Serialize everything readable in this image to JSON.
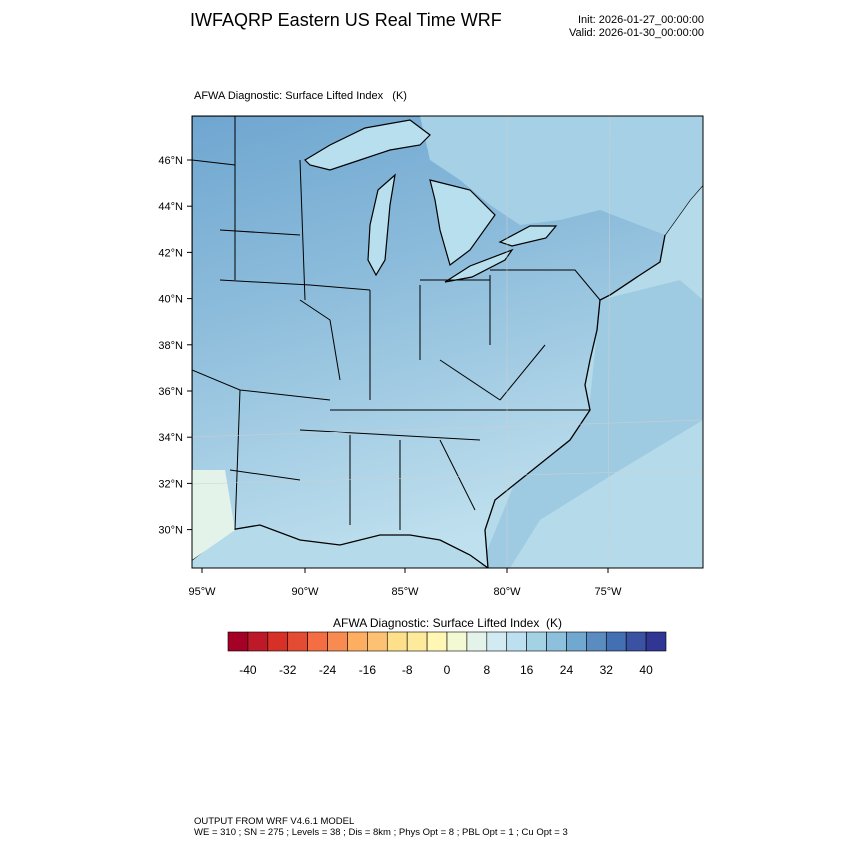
{
  "header": {
    "title": "IWFAQRP Eastern US Real Time WRF",
    "init": "Init: 2026-01-27_00:00:00",
    "valid": "Valid: 2026-01-30_00:00:00"
  },
  "map": {
    "field_label": "AFWA Diagnostic: Surface Lifted Index   (K)",
    "lon_ticks": [
      "95°W",
      "90°W",
      "85°W",
      "80°W",
      "75°W"
    ],
    "lat_ticks": [
      "46°N",
      "44°N",
      "42°N",
      "40°N",
      "38°N",
      "36°N",
      "34°N",
      "32°N",
      "30°N"
    ],
    "colors": {
      "land": "#9cc9e0",
      "ocean": "#b5dbea",
      "north_land": "#6fa6d0",
      "lake": "#b8dfee",
      "outline": "#000000"
    }
  },
  "colorbar": {
    "title": "AFWA Diagnostic: Surface Lifted Index  (K)",
    "labels": [
      "-40",
      "-32",
      "-24",
      "-16",
      "-8",
      "0",
      "8",
      "16",
      "24",
      "32",
      "40"
    ],
    "colors": [
      "#a50026",
      "#be1929",
      "#d73027",
      "#e44b33",
      "#f46d43",
      "#f88b51",
      "#fdae61",
      "#fdc173",
      "#fee08b",
      "#feea9b",
      "#fff7b3",
      "#f3f9d2",
      "#e4f3ea",
      "#d2ebf3",
      "#bce0ef",
      "#a3d2e5",
      "#8cc0dd",
      "#71a8cf",
      "#5a8cc0",
      "#4370b2",
      "#3b52a2",
      "#313695"
    ]
  },
  "footer": {
    "line1": "OUTPUT FROM WRF V4.6.1 MODEL",
    "line2": "WE = 310 ; SN = 275 ; Levels = 38 ; Dis = 8km ; Phys Opt = 8 ; PBL Opt = 1 ; Cu Opt = 3"
  }
}
